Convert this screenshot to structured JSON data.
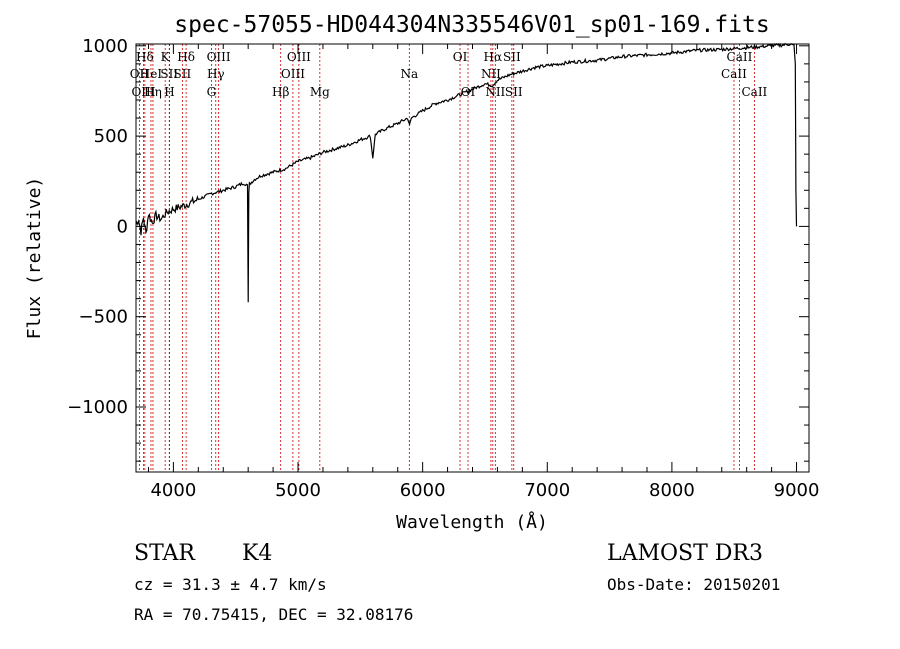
{
  "chart_data": {
    "type": "line",
    "title": "spec-57055-HD044304N335546V01_sp01-169.fits",
    "xlabel": "Wavelength (Å)",
    "ylabel": "Flux (relative)",
    "xlim": [
      3700,
      9100
    ],
    "ylim": [
      -1360,
      1010
    ],
    "xticks": [
      4000,
      5000,
      6000,
      7000,
      8000,
      9000
    ],
    "xtick_labels": [
      "4000",
      "5000",
      "6000",
      "7000",
      "8000",
      "9000"
    ],
    "yticks": [
      -1000,
      -500,
      0,
      500,
      1000
    ],
    "ytick_labels": [
      "−1000",
      "−500",
      "0",
      "500",
      "1000"
    ],
    "series": [
      {
        "name": "spectrum",
        "x": [
          3700,
          3720,
          3740,
          3760,
          3780,
          3800,
          3830,
          3860,
          3900,
          3950,
          4000,
          4100,
          4200,
          4300,
          4400,
          4500,
          4560,
          4595,
          4600,
          4605,
          4610,
          4620,
          4650,
          4700,
          4800,
          4900,
          5000,
          5100,
          5200,
          5300,
          5400,
          5500,
          5580,
          5600,
          5620,
          5700,
          5800,
          5880,
          5895,
          5910,
          6000,
          6100,
          6200,
          6300,
          6400,
          6500,
          6560,
          6600,
          6700,
          6800,
          6900,
          7000,
          7200,
          7400,
          7600,
          7800,
          8000,
          8200,
          8400,
          8500,
          8600,
          8700,
          8800,
          8900,
          8950,
          8980,
          8990,
          8995,
          9000
        ],
        "y": [
          10,
          40,
          -30,
          50,
          -40,
          70,
          20,
          60,
          40,
          80,
          95,
          120,
          150,
          180,
          200,
          220,
          240,
          230,
          -420,
          180,
          235,
          240,
          260,
          280,
          300,
          320,
          360,
          380,
          410,
          430,
          450,
          480,
          500,
          380,
          510,
          540,
          570,
          600,
          560,
          600,
          640,
          680,
          700,
          730,
          760,
          790,
          780,
          810,
          840,
          860,
          880,
          890,
          910,
          920,
          940,
          950,
          960,
          975,
          980,
          985,
          990,
          995,
          1000,
          1005,
          1010,
          1005,
          900,
          200,
          0
        ]
      }
    ],
    "lines": [
      {
        "label": "Hδ",
        "wavelength": 3771,
        "row": 1
      },
      {
        "label": "OII",
        "wavelength": 3727,
        "row": 2
      },
      {
        "label": "OIII",
        "wavelength": 3760,
        "row": 3
      },
      {
        "label": "HeI",
        "wavelength": 3820,
        "row": 2
      },
      {
        "label": "Hη",
        "wavelength": 3836,
        "row": 3
      },
      {
        "label": "K",
        "wavelength": 3934,
        "row": 1
      },
      {
        "label": "SII",
        "wavelength": 3967,
        "row": 2
      },
      {
        "label": "H",
        "wavelength": 3969,
        "row": 3
      },
      {
        "label": "Hδ",
        "wavelength": 4102,
        "row": 1
      },
      {
        "label": "SII",
        "wavelength": 4072,
        "row": 2
      },
      {
        "label": "OIII",
        "wavelength": 4363,
        "row": 1
      },
      {
        "label": "Hγ",
        "wavelength": 4340,
        "row": 2
      },
      {
        "label": "G",
        "wavelength": 4305,
        "row": 3
      },
      {
        "label": "Hβ",
        "wavelength": 4861,
        "row": 3
      },
      {
        "label": "OIII",
        "wavelength": 5007,
        "row": 1
      },
      {
        "label": "OIII",
        "wavelength": 4959,
        "row": 2
      },
      {
        "label": "Mg",
        "wavelength": 5175,
        "row": 3
      },
      {
        "label": "Na",
        "wavelength": 5893,
        "row": 2
      },
      {
        "label": "OI",
        "wavelength": 6300,
        "row": 1
      },
      {
        "label": "OI",
        "wavelength": 6364,
        "row": 3
      },
      {
        "label": "Hα",
        "wavelength": 6563,
        "row": 1
      },
      {
        "label": "NII",
        "wavelength": 6548,
        "row": 2
      },
      {
        "label": "NII",
        "wavelength": 6583,
        "row": 3
      },
      {
        "label": "SII",
        "wavelength": 6716,
        "row": 1
      },
      {
        "label": "SII",
        "wavelength": 6731,
        "row": 3
      },
      {
        "label": "CaII",
        "wavelength": 8542,
        "row": 1
      },
      {
        "label": "CaII",
        "wavelength": 8498,
        "row": 2
      },
      {
        "label": "CaII",
        "wavelength": 8662,
        "row": 3
      }
    ]
  },
  "info": {
    "class": "STAR",
    "subclass": "K4",
    "survey": "LAMOST DR3",
    "cz": "cz = 31.3 ± 4.7 km/s",
    "obs_date": "Obs-Date: 20150201",
    "radec": "RA =  70.75415, DEC =  32.08176"
  },
  "colors": {
    "spectrum": "#000000",
    "line_markers": "#cc0000"
  }
}
